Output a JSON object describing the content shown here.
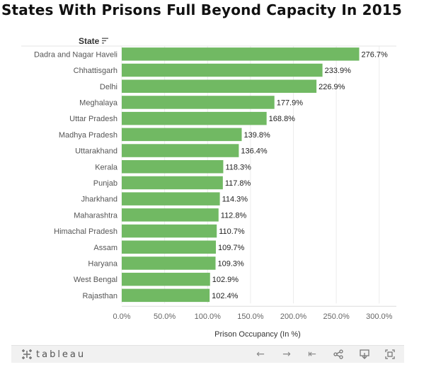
{
  "title": "States With Prisons Full Beyond Capacity In 2015",
  "state_header": "State",
  "footer": {
    "brand": "tableau",
    "icons": [
      "tableau-logo-icon",
      "undo-icon",
      "redo-icon",
      "revert-icon",
      "share-icon",
      "download-icon",
      "fullscreen-icon"
    ]
  },
  "colors": {
    "bar": "#71b963",
    "grid": "#ececec",
    "axis_text": "#666666"
  },
  "chart_data": {
    "type": "bar",
    "orientation": "horizontal",
    "title": "States With Prisons Full Beyond Capacity In 2015",
    "xlabel": "Prison Occupancy (In %)",
    "ylabel": "State",
    "categories": [
      "Dadra and Nagar Haveli",
      "Chhattisgarh",
      "Delhi",
      "Meghalaya",
      "Uttar Pradesh",
      "Madhya Pradesh",
      "Uttarakhand",
      "Kerala",
      "Punjab",
      "Jharkhand",
      "Maharashtra",
      "Himachal Pradesh",
      "Assam",
      "Haryana",
      "West Bengal",
      "Rajasthan"
    ],
    "values": [
      276.7,
      233.9,
      226.9,
      177.9,
      168.8,
      139.8,
      136.4,
      118.3,
      117.8,
      114.3,
      112.8,
      110.7,
      109.7,
      109.3,
      102.9,
      102.4
    ],
    "value_labels": [
      "276.7%",
      "233.9%",
      "226.9%",
      "177.9%",
      "168.8%",
      "139.8%",
      "136.4%",
      "118.3%",
      "117.8%",
      "114.3%",
      "112.8%",
      "110.7%",
      "109.7%",
      "109.3%",
      "102.9%",
      "102.4%"
    ],
    "xlim": [
      0,
      320
    ],
    "xticks": [
      0,
      50,
      100,
      150,
      200,
      250,
      300
    ],
    "xtick_labels": [
      "0.0%",
      "50.0%",
      "100.0%",
      "150.0%",
      "200.0%",
      "250.0%",
      "300.0%"
    ],
    "grid": "vertical"
  }
}
